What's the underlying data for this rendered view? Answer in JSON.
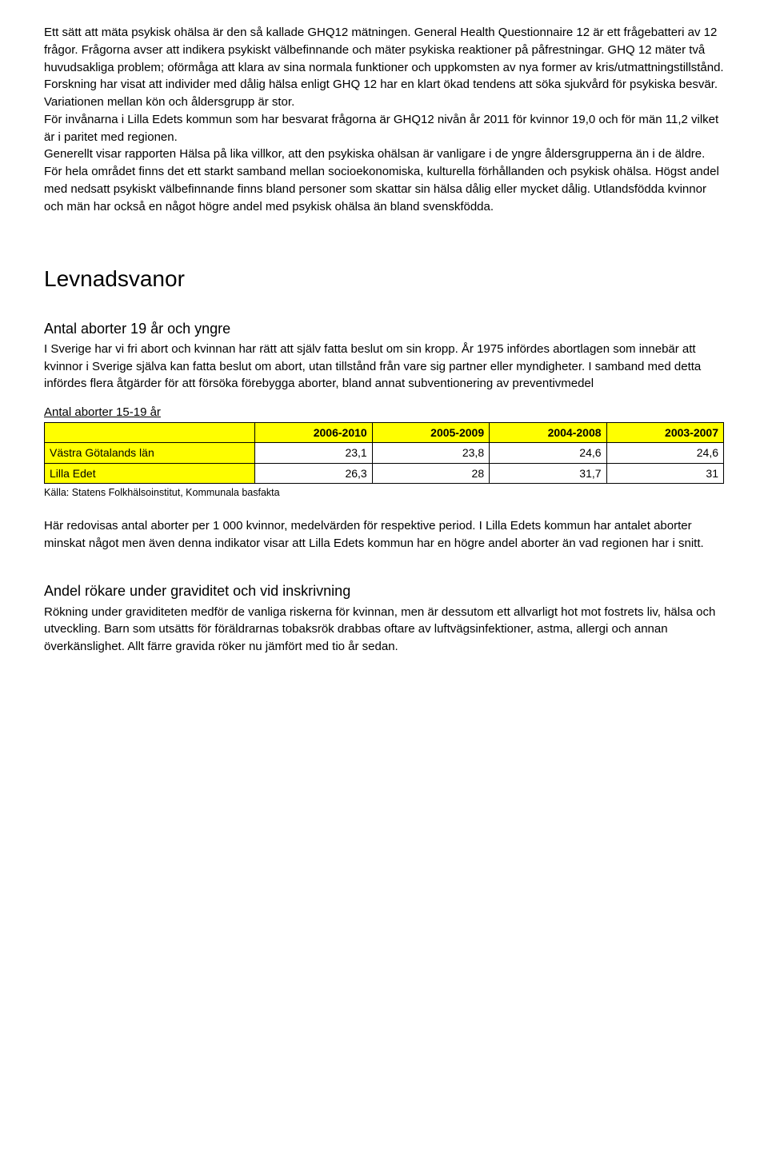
{
  "intro": {
    "p1": "Ett sätt att mäta psykisk ohälsa är den så kallade GHQ12 mätningen. General Health Questionnaire 12 är ett frågebatteri av 12 frågor. Frågorna avser att indikera psykiskt välbefinnande och mäter psykiska reaktioner på påfrestningar. GHQ 12 mäter två huvudsakliga problem; oförmåga att klara av sina normala funktioner och uppkomsten av nya former av kris/utmattningstillstånd. Forskning har visat att individer med dålig hälsa enligt GHQ 12 har en klart ökad tendens att söka sjukvård för psykiska besvär. Variationen mellan kön och åldersgrupp är stor.",
    "p2": "För invånarna i Lilla Edets kommun som har besvarat frågorna är GHQ12 nivån år 2011 för kvinnor 19,0 och för män 11,2 vilket är i paritet med regionen.",
    "p3": "Generellt visar rapporten Hälsa på lika villkor, att den psykiska ohälsan är vanligare i de yngre åldersgrupperna än i de äldre. För hela området finns det ett starkt samband mellan socioekonomiska, kulturella förhållanden och psykisk ohälsa. Högst andel med nedsatt psykiskt välbefinnande finns bland personer som skattar sin hälsa dålig eller mycket dålig. Utlandsfödda kvinnor och män har också en något högre andel med psykisk ohälsa än bland svenskfödda."
  },
  "section": {
    "title": "Levnadsvanor"
  },
  "abort": {
    "heading": "Antal aborter 19 år och yngre",
    "p1": "I Sverige har vi fri abort och kvinnan har rätt att själv fatta beslut om sin kropp. År 1975 infördes abortlagen som innebär att kvinnor i Sverige själva kan fatta beslut om abort, utan tillstånd från vare sig partner eller myndigheter. I samband med detta infördes flera åtgärder för att försöka förebygga aborter, bland annat subventionering av preventivmedel",
    "table_title": "Antal aborter 15-19 år",
    "columns": [
      "2006-2010",
      "2005-2009",
      "2004-2008",
      "2003-2007"
    ],
    "rows": [
      {
        "label": "Västra Götalands län",
        "values": [
          "23,1",
          "23,8",
          "24,6",
          "24,6"
        ]
      },
      {
        "label": "Lilla Edet",
        "values": [
          "26,3",
          "28",
          "31,7",
          "31"
        ]
      }
    ],
    "source": "Källa: Statens Folkhälsoinstitut, Kommunala basfakta",
    "p2": "Här redovisas antal aborter per 1 000 kvinnor, medelvärden för respektive period. I Lilla Edets kommun har antalet aborter minskat något men även denna indikator visar att Lilla Edets kommun har en högre andel aborter än vad regionen har i snitt."
  },
  "smoking": {
    "heading": "Andel rökare under graviditet och vid inskrivning",
    "p1": "Rökning under graviditeten medför de vanliga riskerna för kvinnan, men är dessutom ett allvarligt hot mot fostrets liv, hälsa och utveckling. Barn som utsätts för föräldrarnas tobaksrök drabbas oftare av luftvägsinfektioner, astma, allergi och annan överkänslighet. Allt färre gravida röker nu jämfört med tio år sedan."
  }
}
